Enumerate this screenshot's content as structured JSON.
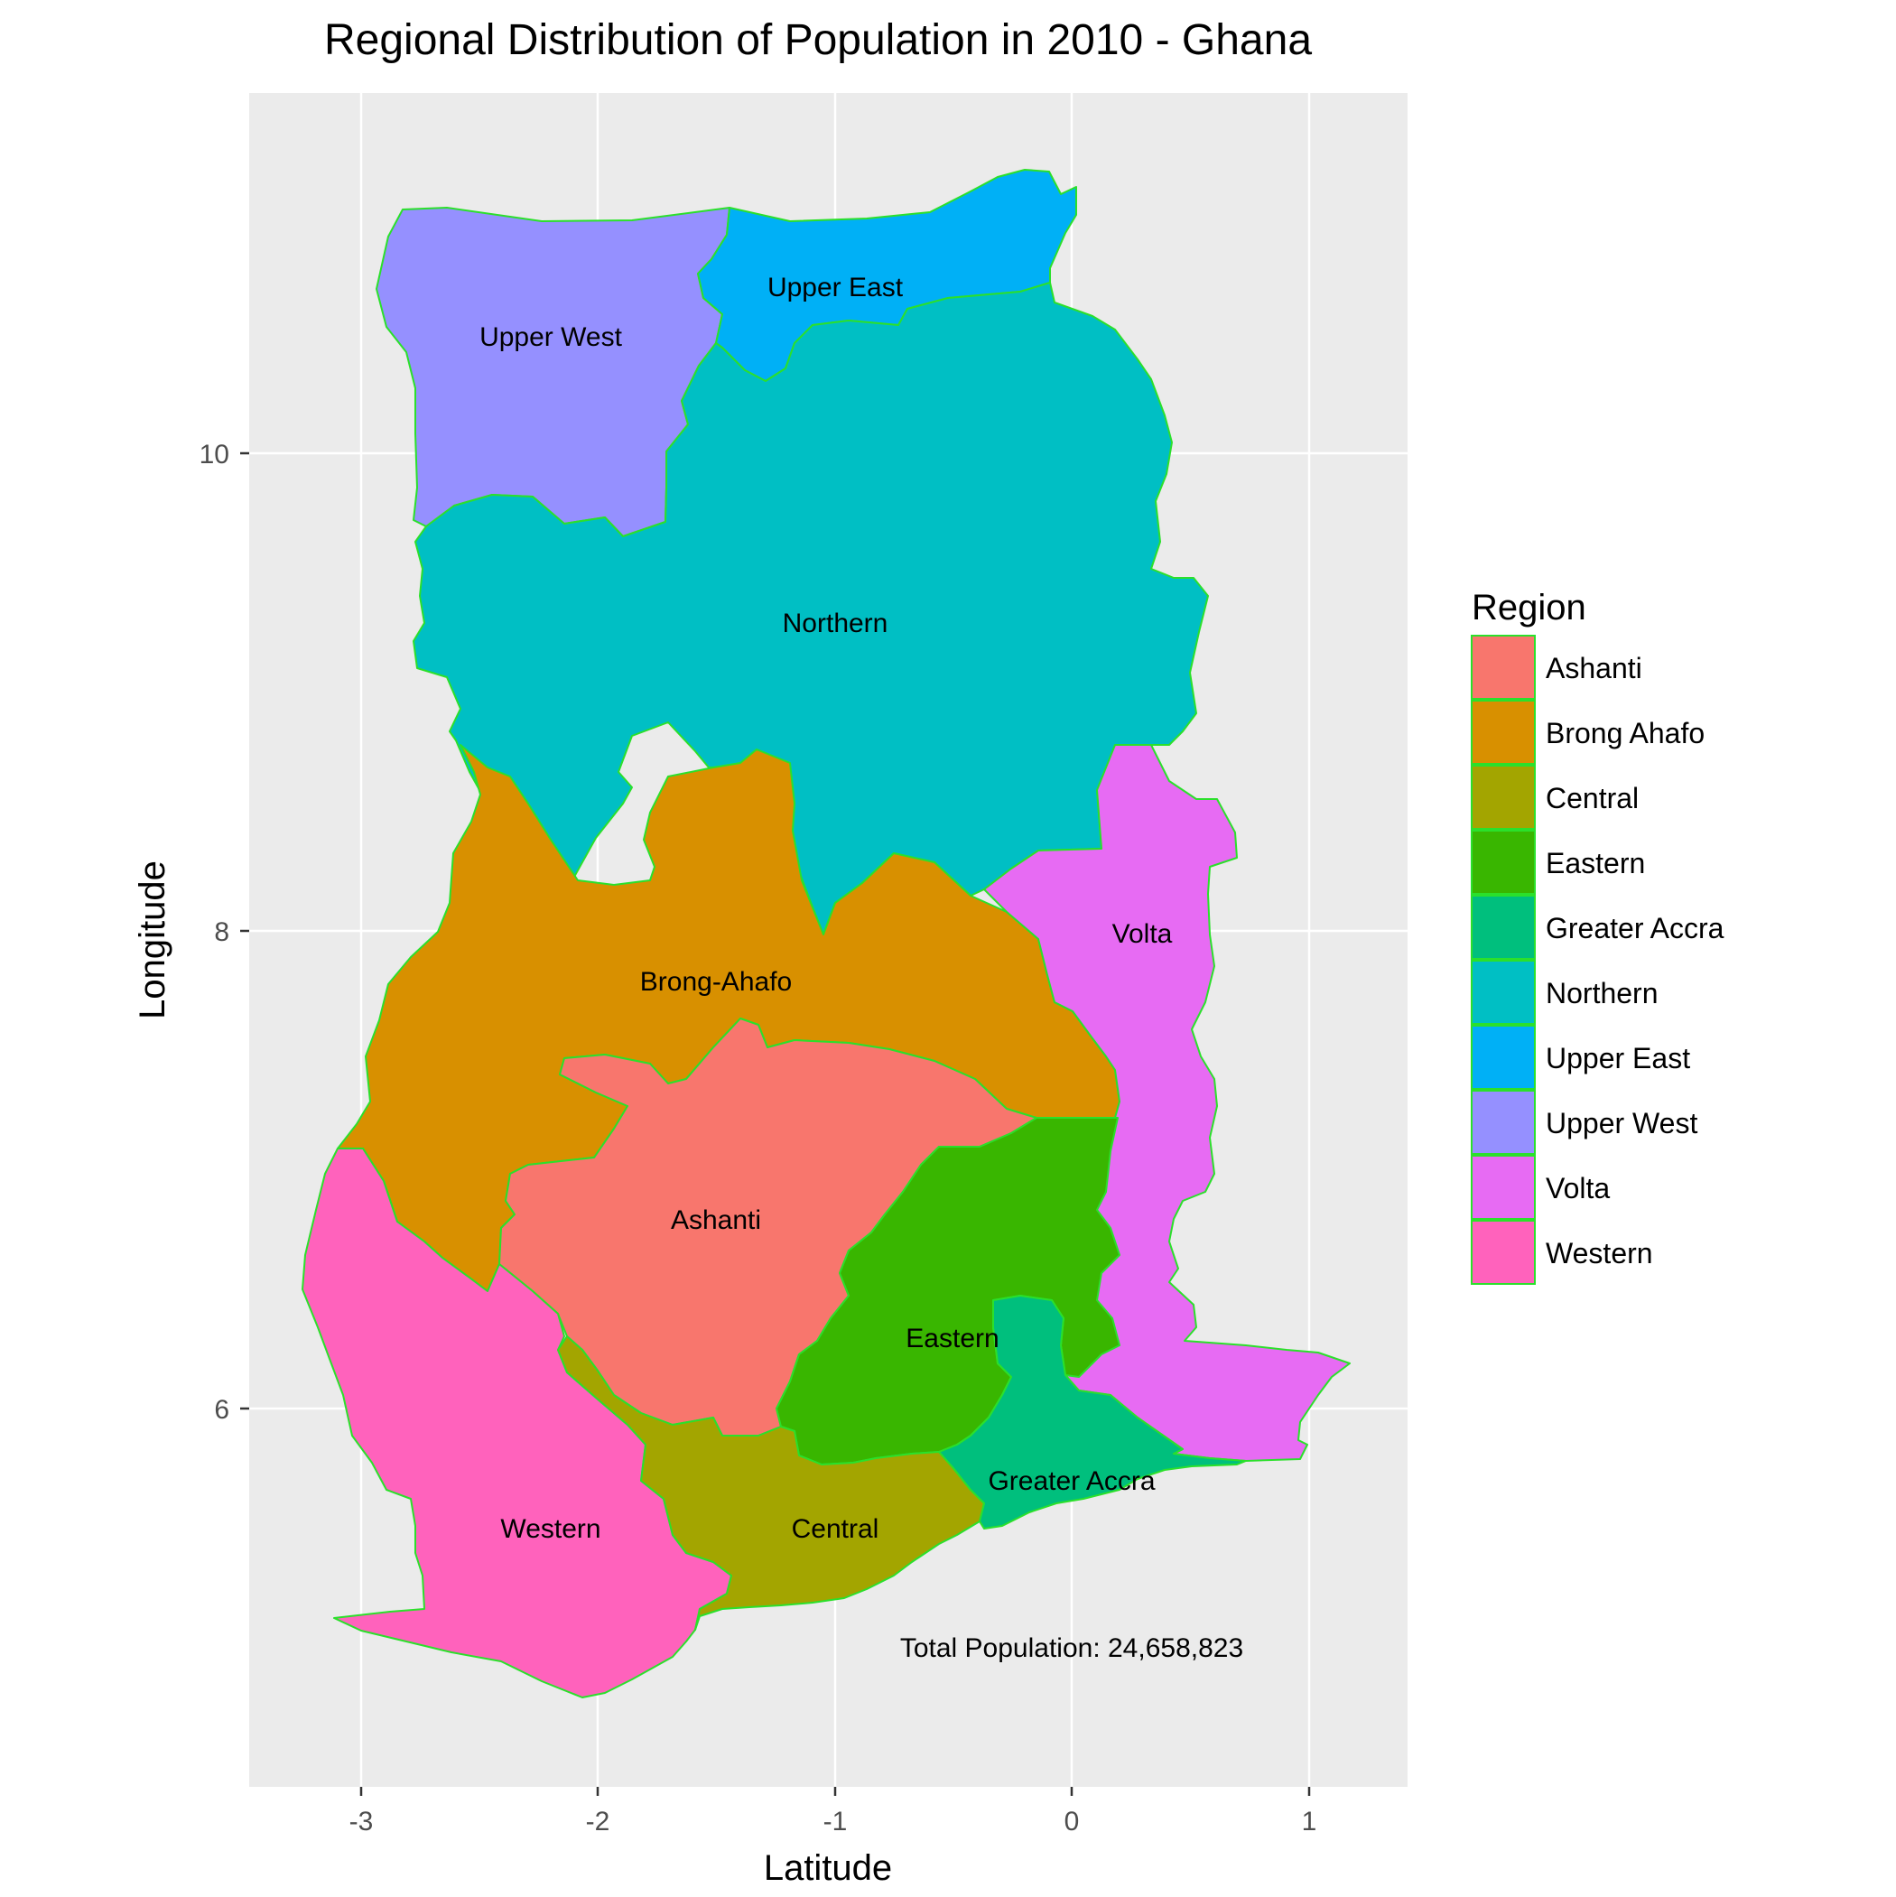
{
  "title": "Regional Distribution of Population in 2010 - Ghana",
  "x_axis": {
    "label": "Latitude",
    "ticks": [
      "-3",
      "-2",
      "-1",
      "0",
      "1"
    ]
  },
  "y_axis": {
    "label": "Longitude",
    "ticks": [
      "10",
      "8",
      "6"
    ]
  },
  "annotation": "Total Population: 24,658,823",
  "legend": {
    "title": "Region",
    "entries": [
      {
        "label": "Ashanti",
        "color": "#F8766D"
      },
      {
        "label": "Brong Ahafo",
        "color": "#D89000"
      },
      {
        "label": "Central",
        "color": "#A3A500"
      },
      {
        "label": "Eastern",
        "color": "#39B600"
      },
      {
        "label": "Greater Accra",
        "color": "#00BF7D"
      },
      {
        "label": "Northern",
        "color": "#00BFC4"
      },
      {
        "label": "Upper East",
        "color": "#00B0F6"
      },
      {
        "label": "Upper West",
        "color": "#9590FF"
      },
      {
        "label": "Volta",
        "color": "#E76BF3"
      },
      {
        "label": "Western",
        "color": "#FF62BC"
      }
    ]
  },
  "regions": [
    {
      "label": "Upper West",
      "color": "#9590FF"
    },
    {
      "label": "Upper East",
      "color": "#00B0F6"
    },
    {
      "label": "Northern",
      "color": "#00BFC4"
    },
    {
      "label": "Brong-Ahafo",
      "color": "#D89000"
    },
    {
      "label": "Volta",
      "color": "#E76BF3"
    },
    {
      "label": "Ashanti",
      "color": "#F8766D"
    },
    {
      "label": "Eastern",
      "color": "#39B600"
    },
    {
      "label": "Western",
      "color": "#FF62BC"
    },
    {
      "label": "Central",
      "color": "#A3A500"
    },
    {
      "label": "Greater Accra",
      "color": "#00BF7D"
    }
  ],
  "colors": {
    "panel_bg": "#EBEBEB",
    "grid": "#FFFFFF",
    "region_border": "#2BE02B"
  }
}
